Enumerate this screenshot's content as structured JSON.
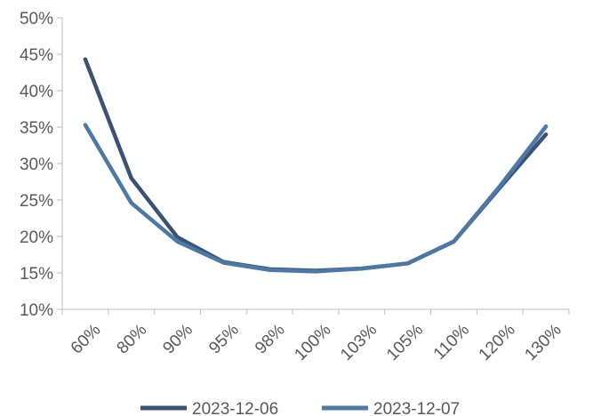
{
  "chart_data": {
    "type": "line",
    "title": "",
    "xlabel": "",
    "ylabel": "",
    "categories": [
      "60%",
      "80%",
      "90%",
      "95%",
      "98%",
      "100%",
      "103%",
      "105%",
      "110%",
      "120%",
      "130%"
    ],
    "ylim": [
      10,
      50
    ],
    "yticks": [
      "10%",
      "15%",
      "20%",
      "25%",
      "30%",
      "35%",
      "40%",
      "45%",
      "50%"
    ],
    "grid": false,
    "legend_position": "bottom",
    "series": [
      {
        "name": "2023-12-06",
        "color": "#3a5273",
        "values": [
          44.3,
          28.0,
          19.9,
          16.5,
          15.5,
          15.3,
          15.6,
          16.3,
          19.3,
          26.7,
          34.0
        ]
      },
      {
        "name": "2023-12-07",
        "color": "#4b79a6",
        "values": [
          35.3,
          24.6,
          19.3,
          16.4,
          15.4,
          15.2,
          15.6,
          16.3,
          19.3,
          26.9,
          35.1
        ]
      }
    ]
  }
}
